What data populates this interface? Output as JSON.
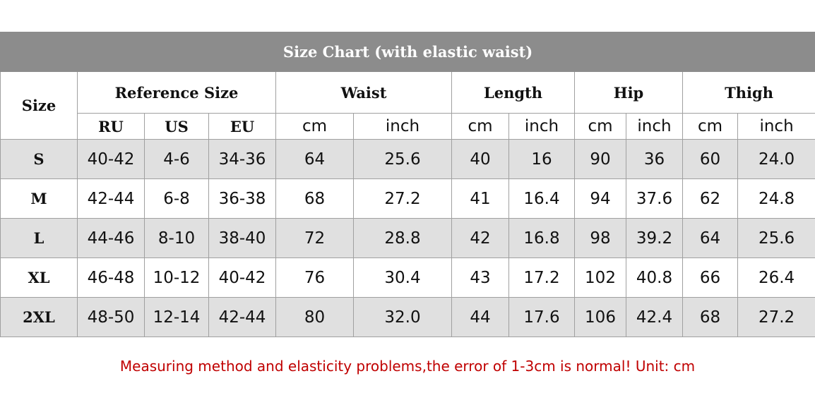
{
  "title": "Size Chart (with elastic waist)",
  "header": {
    "size": "Size",
    "groups": [
      {
        "label": "Reference Size",
        "subs": [
          "RU",
          "US",
          "EU"
        ]
      },
      {
        "label": "Waist",
        "subs": [
          "cm",
          "inch"
        ]
      },
      {
        "label": "Length",
        "subs": [
          "cm",
          "inch"
        ]
      },
      {
        "label": "Hip",
        "subs": [
          "cm",
          "inch"
        ]
      },
      {
        "label": "Thigh",
        "subs": [
          "cm",
          "inch"
        ]
      }
    ]
  },
  "rows": [
    [
      "S",
      "40-42",
      "4-6",
      "34-36",
      "64",
      "25.6",
      "40",
      "16",
      "90",
      "36",
      "60",
      "24.0"
    ],
    [
      "M",
      "42-44",
      "6-8",
      "36-38",
      "68",
      "27.2",
      "41",
      "16.4",
      "94",
      "37.6",
      "62",
      "24.8"
    ],
    [
      "L",
      "44-46",
      "8-10",
      "38-40",
      "72",
      "28.8",
      "42",
      "16.8",
      "98",
      "39.2",
      "64",
      "25.6"
    ],
    [
      "XL",
      "46-48",
      "10-12",
      "40-42",
      "76",
      "30.4",
      "43",
      "17.2",
      "102",
      "40.8",
      "66",
      "26.4"
    ],
    [
      "2XL",
      "48-50",
      "12-14",
      "42-44",
      "80",
      "32.0",
      "44",
      "17.6",
      "106",
      "42.4",
      "68",
      "27.2"
    ]
  ],
  "note": "Measuring method and elasticity problems,the error of 1-3cm is normal! Unit: cm"
}
